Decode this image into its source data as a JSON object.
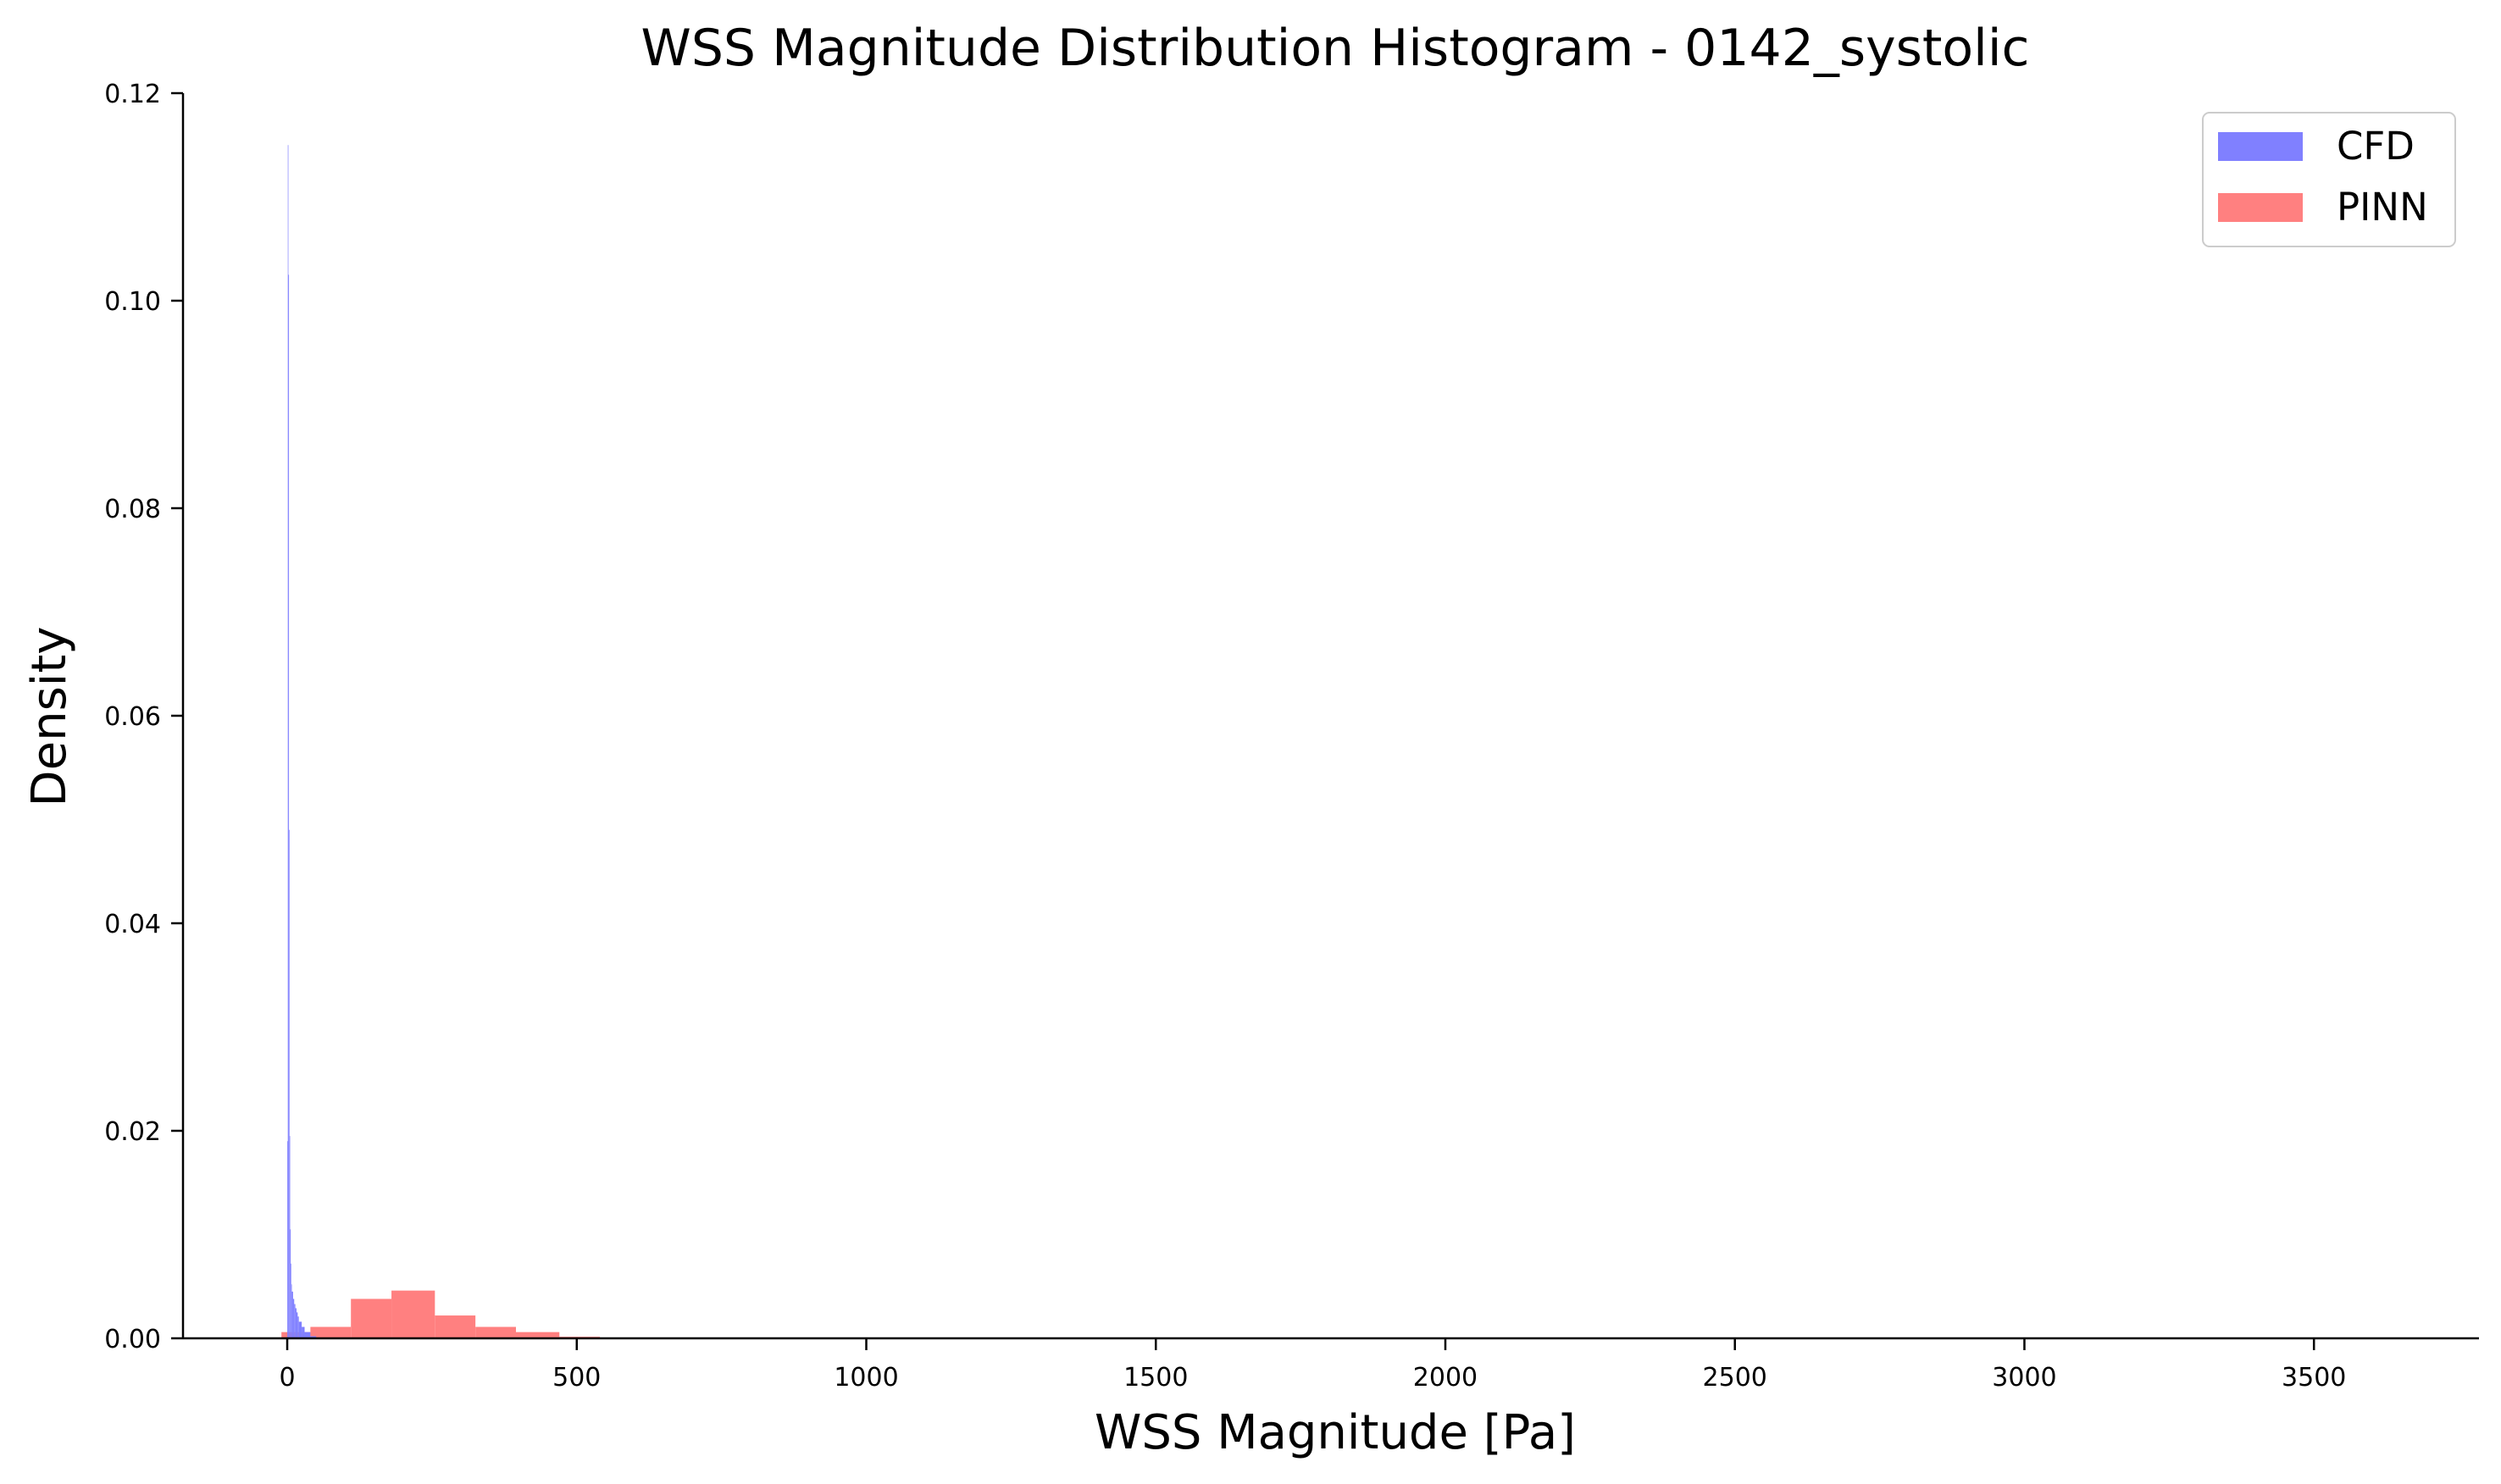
{
  "chart_data": {
    "type": "bar",
    "title": "WSS Magnitude Distribution Histogram - 0142_systolic",
    "xlabel": "WSS Magnitude [Pa]",
    "ylabel": "Density",
    "xlim": [
      -180,
      3785
    ],
    "ylim": [
      0,
      0.12
    ],
    "xticks": [
      0,
      500,
      1000,
      1500,
      2000,
      2500,
      3000,
      3500
    ],
    "yticks": [
      0.0,
      0.02,
      0.04,
      0.06,
      0.08,
      0.1,
      0.12
    ],
    "ytick_labels": [
      "0.00",
      "0.02",
      "0.04",
      "0.06",
      "0.08",
      "0.10",
      "0.12"
    ],
    "grid": false,
    "legend": "top-right",
    "series": [
      {
        "name": "CFD",
        "color": "#8080ff",
        "bin_edges": [
          0,
          1,
          2,
          3,
          4,
          5,
          6,
          7,
          8,
          10,
          12,
          14,
          16,
          18,
          20,
          25,
          30,
          40,
          50
        ],
        "density": [
          0.019,
          0.115,
          0.1025,
          0.049,
          0.0195,
          0.0105,
          0.0072,
          0.0052,
          0.0045,
          0.0038,
          0.0033,
          0.0029,
          0.0025,
          0.0021,
          0.0016,
          0.0011,
          0.0006,
          0.0002
        ]
      },
      {
        "name": "PINN",
        "color": "#ff8080",
        "bin_edges": [
          -10,
          40,
          110,
          180,
          255,
          325,
          395,
          470,
          540
        ],
        "density": [
          0.0006,
          0.0011,
          0.0038,
          0.0046,
          0.0022,
          0.0011,
          0.0006,
          0.00015
        ]
      }
    ]
  }
}
